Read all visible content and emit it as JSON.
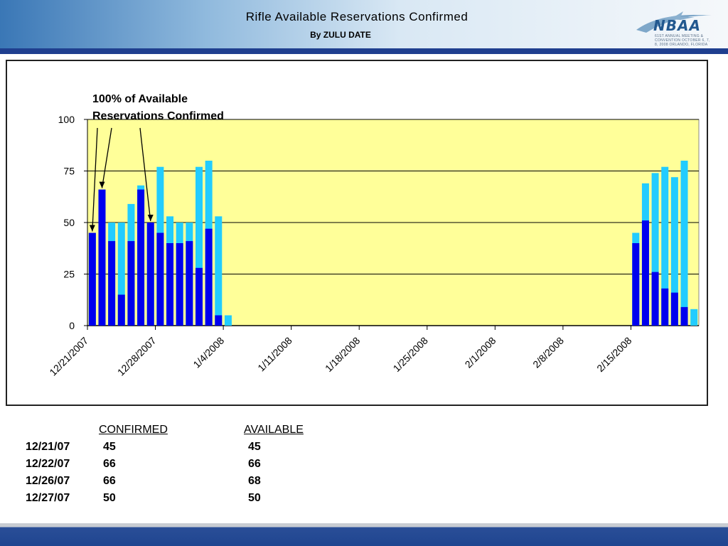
{
  "logo": {
    "text": "NBAA",
    "sub": "61ST ANNUAL MEETING & CONVENTION OCTOBER 6, 7, 8, 2008 ORLANDO, FLORIDA"
  },
  "annotation": {
    "line1": "100% of Available",
    "line2": "Reservations Confirmed"
  },
  "table": {
    "headers": {
      "confirmed": "CONFIRMED",
      "available": "AVAILABLE"
    },
    "rows": [
      {
        "date": "12/21/07",
        "confirmed": "45",
        "available": "45"
      },
      {
        "date": "12/22/07",
        "confirmed": "66",
        "available": "66"
      },
      {
        "date": "12/26/07",
        "confirmed": "66",
        "available": "68"
      },
      {
        "date": "12/27/07",
        "confirmed": "50",
        "available": "50"
      }
    ]
  },
  "chart_data": {
    "type": "bar",
    "title": "Rifle Available Reservations Confirmed",
    "subtitle": "By ZULU DATE",
    "ylim": [
      0,
      100
    ],
    "yticks": [
      0,
      25,
      50,
      75,
      100
    ],
    "xlim": [
      "12/21/2007",
      "2/22/2008"
    ],
    "xticks": [
      "12/21/2007",
      "12/28/2007",
      "1/4/2008",
      "1/11/2008",
      "1/18/2008",
      "1/25/2008",
      "2/1/2008",
      "2/8/2008",
      "2/15/2008"
    ],
    "grid": true,
    "plot_background": "#ffff99",
    "series": [
      {
        "color": "#0000ee",
        "points": [
          {
            "x": "12/21/2007",
            "y": 45
          },
          {
            "x": "12/22/2007",
            "y": 66
          },
          {
            "x": "12/23/2007",
            "y": 41
          },
          {
            "x": "12/24/2007",
            "y": 15
          },
          {
            "x": "12/25/2007",
            "y": 41
          },
          {
            "x": "12/26/2007",
            "y": 66
          },
          {
            "x": "12/27/2007",
            "y": 50
          },
          {
            "x": "12/28/2007",
            "y": 45
          },
          {
            "x": "12/29/2007",
            "y": 40
          },
          {
            "x": "12/30/2007",
            "y": 40
          },
          {
            "x": "12/31/2007",
            "y": 41
          },
          {
            "x": "1/1/2008",
            "y": 28
          },
          {
            "x": "1/2/2008",
            "y": 47
          },
          {
            "x": "1/3/2008",
            "y": 5
          },
          {
            "x": "1/4/2008",
            "y": 0
          },
          {
            "x": "2/15/2008",
            "y": 40
          },
          {
            "x": "2/16/2008",
            "y": 51
          },
          {
            "x": "2/17/2008",
            "y": 26
          },
          {
            "x": "2/18/2008",
            "y": 18
          },
          {
            "x": "2/19/2008",
            "y": 16
          },
          {
            "x": "2/20/2008",
            "y": 9
          },
          {
            "x": "2/21/2008",
            "y": 0
          }
        ]
      },
      {
        "color": "#22ccff",
        "points": [
          {
            "x": "12/21/2007",
            "y": 45
          },
          {
            "x": "12/22/2007",
            "y": 66
          },
          {
            "x": "12/23/2007",
            "y": 50
          },
          {
            "x": "12/24/2007",
            "y": 50
          },
          {
            "x": "12/25/2007",
            "y": 59
          },
          {
            "x": "12/26/2007",
            "y": 68
          },
          {
            "x": "12/27/2007",
            "y": 50
          },
          {
            "x": "12/28/2007",
            "y": 77
          },
          {
            "x": "12/29/2007",
            "y": 53
          },
          {
            "x": "12/30/2007",
            "y": 50
          },
          {
            "x": "12/31/2007",
            "y": 50
          },
          {
            "x": "1/1/2008",
            "y": 77
          },
          {
            "x": "1/2/2008",
            "y": 80
          },
          {
            "x": "1/3/2008",
            "y": 53
          },
          {
            "x": "1/4/2008",
            "y": 5
          },
          {
            "x": "2/15/2008",
            "y": 45
          },
          {
            "x": "2/16/2008",
            "y": 69
          },
          {
            "x": "2/17/2008",
            "y": 74
          },
          {
            "x": "2/18/2008",
            "y": 77
          },
          {
            "x": "2/19/2008",
            "y": 72
          },
          {
            "x": "2/20/2008",
            "y": 80
          },
          {
            "x": "2/21/2008",
            "y": 8
          }
        ]
      }
    ]
  }
}
